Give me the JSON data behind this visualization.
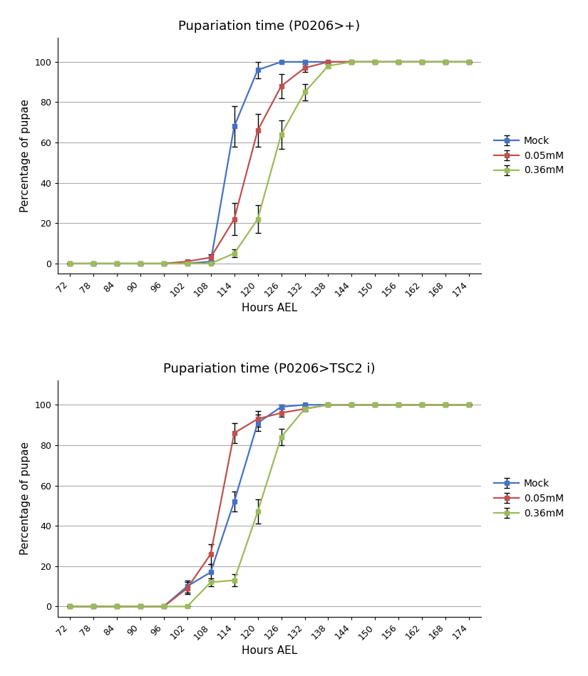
{
  "plot1": {
    "title": "Pupariation time (P0206>+)",
    "xlabel": "Hours AEL",
    "ylabel": "Percentage of pupae",
    "xlim": [
      69,
      177
    ],
    "ylim": [
      -5,
      112
    ],
    "xticks": [
      72,
      78,
      84,
      90,
      96,
      102,
      108,
      114,
      120,
      126,
      132,
      138,
      144,
      150,
      156,
      162,
      168,
      174
    ],
    "yticks": [
      0,
      20,
      40,
      60,
      80,
      100
    ],
    "series": [
      {
        "label": "Mock",
        "color": "#4472C4",
        "x": [
          72,
          78,
          84,
          90,
          96,
          102,
          108,
          114,
          120,
          126,
          132,
          138,
          144,
          150,
          156,
          162,
          168,
          174
        ],
        "y": [
          0,
          0,
          0,
          0,
          0,
          0,
          1,
          68,
          96,
          100,
          100,
          100,
          100,
          100,
          100,
          100,
          100,
          100
        ],
        "yerr": [
          0,
          0,
          0,
          0,
          0,
          0,
          0.5,
          10,
          4,
          0,
          0,
          0,
          0,
          0,
          0,
          0,
          0,
          0
        ]
      },
      {
        "label": "0.05mM",
        "color": "#C0504D",
        "x": [
          72,
          78,
          84,
          90,
          96,
          102,
          108,
          114,
          120,
          126,
          132,
          138,
          144,
          150,
          156,
          162,
          168,
          174
        ],
        "y": [
          0,
          0,
          0,
          0,
          0,
          1,
          3,
          22,
          66,
          88,
          97,
          100,
          100,
          100,
          100,
          100,
          100,
          100
        ],
        "yerr": [
          0,
          0,
          0,
          0,
          0,
          0.5,
          1.5,
          8,
          8,
          6,
          2,
          0,
          0,
          0,
          0,
          0,
          0,
          0
        ]
      },
      {
        "label": "0.36mM",
        "color": "#9BBB59",
        "x": [
          72,
          78,
          84,
          90,
          96,
          102,
          108,
          114,
          120,
          126,
          132,
          138,
          144,
          150,
          156,
          162,
          168,
          174
        ],
        "y": [
          0,
          0,
          0,
          0,
          0,
          0,
          0,
          5,
          22,
          64,
          85,
          98,
          100,
          100,
          100,
          100,
          100,
          100
        ],
        "yerr": [
          0,
          0,
          0,
          0,
          0,
          0,
          0,
          2,
          7,
          7,
          4,
          1,
          0,
          0,
          0,
          0,
          0,
          0
        ]
      }
    ]
  },
  "plot2": {
    "title": "Pupariation time (P0206>TSC2 i)",
    "xlabel": "Hours AEL",
    "ylabel": "Percentage of pupae",
    "xlim": [
      69,
      177
    ],
    "ylim": [
      -5,
      112
    ],
    "xticks": [
      72,
      78,
      84,
      90,
      96,
      102,
      108,
      114,
      120,
      126,
      132,
      138,
      144,
      150,
      156,
      162,
      168,
      174
    ],
    "yticks": [
      0,
      20,
      40,
      60,
      80,
      100
    ],
    "series": [
      {
        "label": "Mock",
        "color": "#4472C4",
        "x": [
          72,
          78,
          84,
          90,
          96,
          102,
          108,
          114,
          120,
          126,
          132,
          138,
          144,
          150,
          156,
          162,
          168,
          174
        ],
        "y": [
          0,
          0,
          0,
          0,
          0,
          10,
          17,
          52,
          91,
          99,
          100,
          100,
          100,
          100,
          100,
          100,
          100,
          100
        ],
        "yerr": [
          0,
          0,
          0,
          0,
          0,
          3,
          4,
          5,
          4,
          1,
          0,
          0,
          0,
          0,
          0,
          0,
          0,
          0
        ]
      },
      {
        "label": "0.05mM",
        "color": "#C0504D",
        "x": [
          72,
          78,
          84,
          90,
          96,
          102,
          108,
          114,
          120,
          126,
          132,
          138,
          144,
          150,
          156,
          162,
          168,
          174
        ],
        "y": [
          0,
          0,
          0,
          0,
          0,
          9,
          26,
          86,
          93,
          96,
          98,
          100,
          100,
          100,
          100,
          100,
          100,
          100
        ],
        "yerr": [
          0,
          0,
          0,
          0,
          0,
          3,
          5,
          5,
          4,
          2,
          1,
          0,
          0,
          0,
          0,
          0,
          0,
          0
        ]
      },
      {
        "label": "0.36mM",
        "color": "#9BBB59",
        "x": [
          72,
          78,
          84,
          90,
          96,
          102,
          108,
          114,
          120,
          126,
          132,
          138,
          144,
          150,
          156,
          162,
          168,
          174
        ],
        "y": [
          0,
          0,
          0,
          0,
          0,
          0,
          12,
          13,
          47,
          84,
          98,
          100,
          100,
          100,
          100,
          100,
          100,
          100
        ],
        "yerr": [
          0,
          0,
          0,
          0,
          0,
          0,
          2,
          3,
          6,
          4,
          1,
          0,
          0,
          0,
          0,
          0,
          0,
          0
        ]
      }
    ]
  },
  "legend_marker": "s",
  "linewidth": 1.6,
  "markersize": 4,
  "capsize": 3,
  "elinewidth": 1.0,
  "background_color": "#FFFFFF",
  "grid_color": "#AAAAAA",
  "title_fontsize": 13,
  "label_fontsize": 11,
  "tick_fontsize": 9,
  "legend_fontsize": 10
}
